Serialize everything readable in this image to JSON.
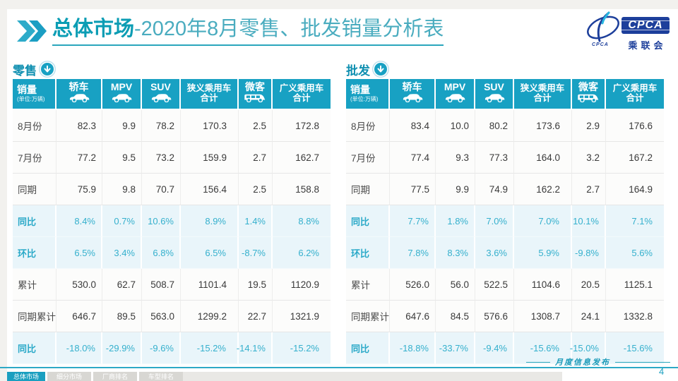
{
  "colors": {
    "accent_teal": "#18a1c3",
    "section_label": "#0f8fb0",
    "pct_text": "#35b0cd",
    "pct_row_bg": "#e9f5fa",
    "logo_blue": "#1d3f9b",
    "underline": "#2aa6bc"
  },
  "header": {
    "chevron_icon": "double-right-chevron-icon",
    "title_emphasis": "总体市场",
    "title_rest": "-2020年8月零售、批发销量分析表",
    "logo": {
      "box_text": "CPCA",
      "association": "乘联会",
      "small_text": "CPCA"
    }
  },
  "watermark": "CPCA",
  "tables": [
    {
      "section_label": "零售",
      "section_icon": "down-arrow-circle-icon",
      "stat_header": {
        "title": "销量",
        "unit": "(单位:万辆)"
      },
      "columns": [
        {
          "label": "轿车",
          "icon": "car-icon"
        },
        {
          "label": "MPV",
          "icon": "car-icon"
        },
        {
          "label": "SUV",
          "icon": "car-icon"
        },
        {
          "label": "狭义乘用车",
          "label2": "合计",
          "icon": null
        },
        {
          "label": "微客",
          "icon": "van-icon"
        },
        {
          "label": "广义乘用车",
          "label2": "合计",
          "icon": null
        }
      ],
      "rows": [
        {
          "label": "8月份",
          "type": "num",
          "values": [
            "82.3",
            "9.9",
            "78.2",
            "170.3",
            "2.5",
            "172.8"
          ]
        },
        {
          "label": "7月份",
          "type": "num",
          "values": [
            "77.2",
            "9.5",
            "73.2",
            "159.9",
            "2.7",
            "162.7"
          ]
        },
        {
          "label": "同期",
          "type": "num",
          "values": [
            "75.9",
            "9.8",
            "70.7",
            "156.4",
            "2.5",
            "158.8"
          ]
        },
        {
          "label": "同比",
          "type": "pct",
          "values": [
            "8.4%",
            "0.7%",
            "10.6%",
            "8.9%",
            "1.4%",
            "8.8%"
          ]
        },
        {
          "label": "环比",
          "type": "pct",
          "values": [
            "6.5%",
            "3.4%",
            "6.8%",
            "6.5%",
            "-8.7%",
            "6.2%"
          ]
        },
        {
          "label": "累计",
          "type": "num",
          "values": [
            "530.0",
            "62.7",
            "508.7",
            "1101.4",
            "19.5",
            "1120.9"
          ]
        },
        {
          "label": "同期累计",
          "type": "num",
          "values": [
            "646.7",
            "89.5",
            "563.0",
            "1299.2",
            "22.7",
            "1321.9"
          ]
        },
        {
          "label": "同比",
          "type": "pct",
          "values": [
            "-18.0%",
            "-29.9%",
            "-9.6%",
            "-15.2%",
            "-14.1%",
            "-15.2%"
          ]
        }
      ]
    },
    {
      "section_label": "批发",
      "section_icon": "down-arrow-circle-icon",
      "stat_header": {
        "title": "销量",
        "unit": "(单位:万辆)"
      },
      "columns": [
        {
          "label": "轿车",
          "icon": "car-icon"
        },
        {
          "label": "MPV",
          "icon": "car-icon"
        },
        {
          "label": "SUV",
          "icon": "car-icon"
        },
        {
          "label": "狭义乘用车",
          "label2": "合计",
          "icon": null
        },
        {
          "label": "微客",
          "icon": "van-icon"
        },
        {
          "label": "广义乘用车",
          "label2": "合计",
          "icon": null
        }
      ],
      "rows": [
        {
          "label": "8月份",
          "type": "num",
          "values": [
            "83.4",
            "10.0",
            "80.2",
            "173.6",
            "2.9",
            "176.6"
          ]
        },
        {
          "label": "7月份",
          "type": "num",
          "values": [
            "77.4",
            "9.3",
            "77.3",
            "164.0",
            "3.2",
            "167.2"
          ]
        },
        {
          "label": "同期",
          "type": "num",
          "values": [
            "77.5",
            "9.9",
            "74.9",
            "162.2",
            "2.7",
            "164.9"
          ]
        },
        {
          "label": "同比",
          "type": "pct",
          "values": [
            "7.7%",
            "1.8%",
            "7.0%",
            "7.0%",
            "10.1%",
            "7.1%"
          ]
        },
        {
          "label": "环比",
          "type": "pct",
          "values": [
            "7.8%",
            "8.3%",
            "3.6%",
            "5.9%",
            "-9.8%",
            "5.6%"
          ]
        },
        {
          "label": "累计",
          "type": "num",
          "values": [
            "526.0",
            "56.0",
            "522.5",
            "1104.6",
            "20.5",
            "1125.1"
          ]
        },
        {
          "label": "同期累计",
          "type": "num",
          "values": [
            "647.6",
            "84.5",
            "576.6",
            "1308.7",
            "24.1",
            "1332.8"
          ]
        },
        {
          "label": "同比",
          "type": "pct",
          "values": [
            "-18.8%",
            "-33.7%",
            "-9.4%",
            "-15.6%",
            "-15.0%",
            "-15.6%"
          ]
        }
      ]
    }
  ],
  "footer": {
    "tabs": [
      {
        "label": "总体市场",
        "active": true
      },
      {
        "label": "细分市场",
        "active": false
      },
      {
        "label": "厂商排名",
        "active": false
      },
      {
        "label": "车型排名",
        "active": false
      }
    ],
    "release_label": "月度信息发布",
    "page_number": "4"
  }
}
